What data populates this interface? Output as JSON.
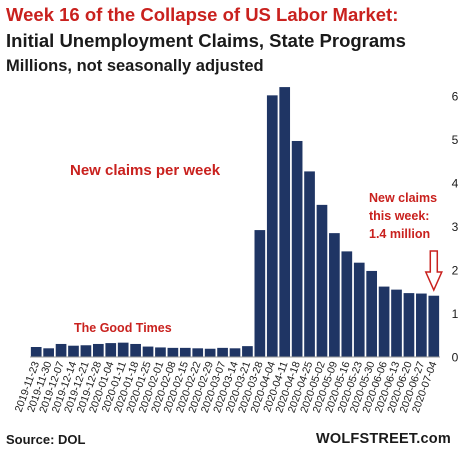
{
  "header": {
    "title": "Week 16 of the Collapse of US Labor Market:",
    "subtitle": "Initial Unemployment Claims, State Programs",
    "units": "Millions, not seasonally adjusted"
  },
  "footer": {
    "source": "Source: DOL",
    "brand": "WOLFSTREET.com"
  },
  "colors": {
    "bar": "#1f3564",
    "accent": "#c9211e",
    "text": "#1a1a1a"
  },
  "chart_data": {
    "type": "bar",
    "title": "Week 16 of the Collapse of US Labor Market:",
    "ylabel": "",
    "xlabel": "",
    "ylim": [
      0,
      6.35
    ],
    "yticks": [
      0,
      1,
      2,
      3,
      4,
      5,
      6
    ],
    "y_axis_side": "right",
    "grid": false,
    "categories": [
      "2019-11-23",
      "2019-11-30",
      "2019-12-07",
      "2019-12-14",
      "2019-12-21",
      "2019-12-28",
      "2020-01-04",
      "2020-01-11",
      "2020-01-18",
      "2020-01-25",
      "2020-02-01",
      "2020-02-08",
      "2020-02-15",
      "2020-02-22",
      "2020-02-29",
      "2020-03-07",
      "2020-03-14",
      "2020-03-21",
      "2020-03-28",
      "2020-04-04",
      "2020-04-11",
      "2020-04-18",
      "2020-04-25",
      "2020-05-02",
      "2020-05-09",
      "2020-05-16",
      "2020-05-23",
      "2020-05-30",
      "2020-06-06",
      "2020-06-13",
      "2020-06-20",
      "2020-06-27",
      "2020-07-04"
    ],
    "values": [
      0.23,
      0.2,
      0.3,
      0.26,
      0.27,
      0.3,
      0.32,
      0.33,
      0.3,
      0.24,
      0.22,
      0.21,
      0.21,
      0.2,
      0.19,
      0.21,
      0.2,
      0.25,
      2.92,
      6.02,
      6.21,
      4.97,
      4.27,
      3.5,
      2.85,
      2.43,
      2.17,
      1.98,
      1.62,
      1.55,
      1.47,
      1.46,
      1.41
    ],
    "annotations": [
      {
        "id": "per-week",
        "text": "New claims per week"
      },
      {
        "id": "good-times",
        "text": "The Good Times"
      },
      {
        "id": "this-week",
        "lines": [
          "New claims",
          "this week:",
          "1.4 million"
        ]
      }
    ]
  }
}
